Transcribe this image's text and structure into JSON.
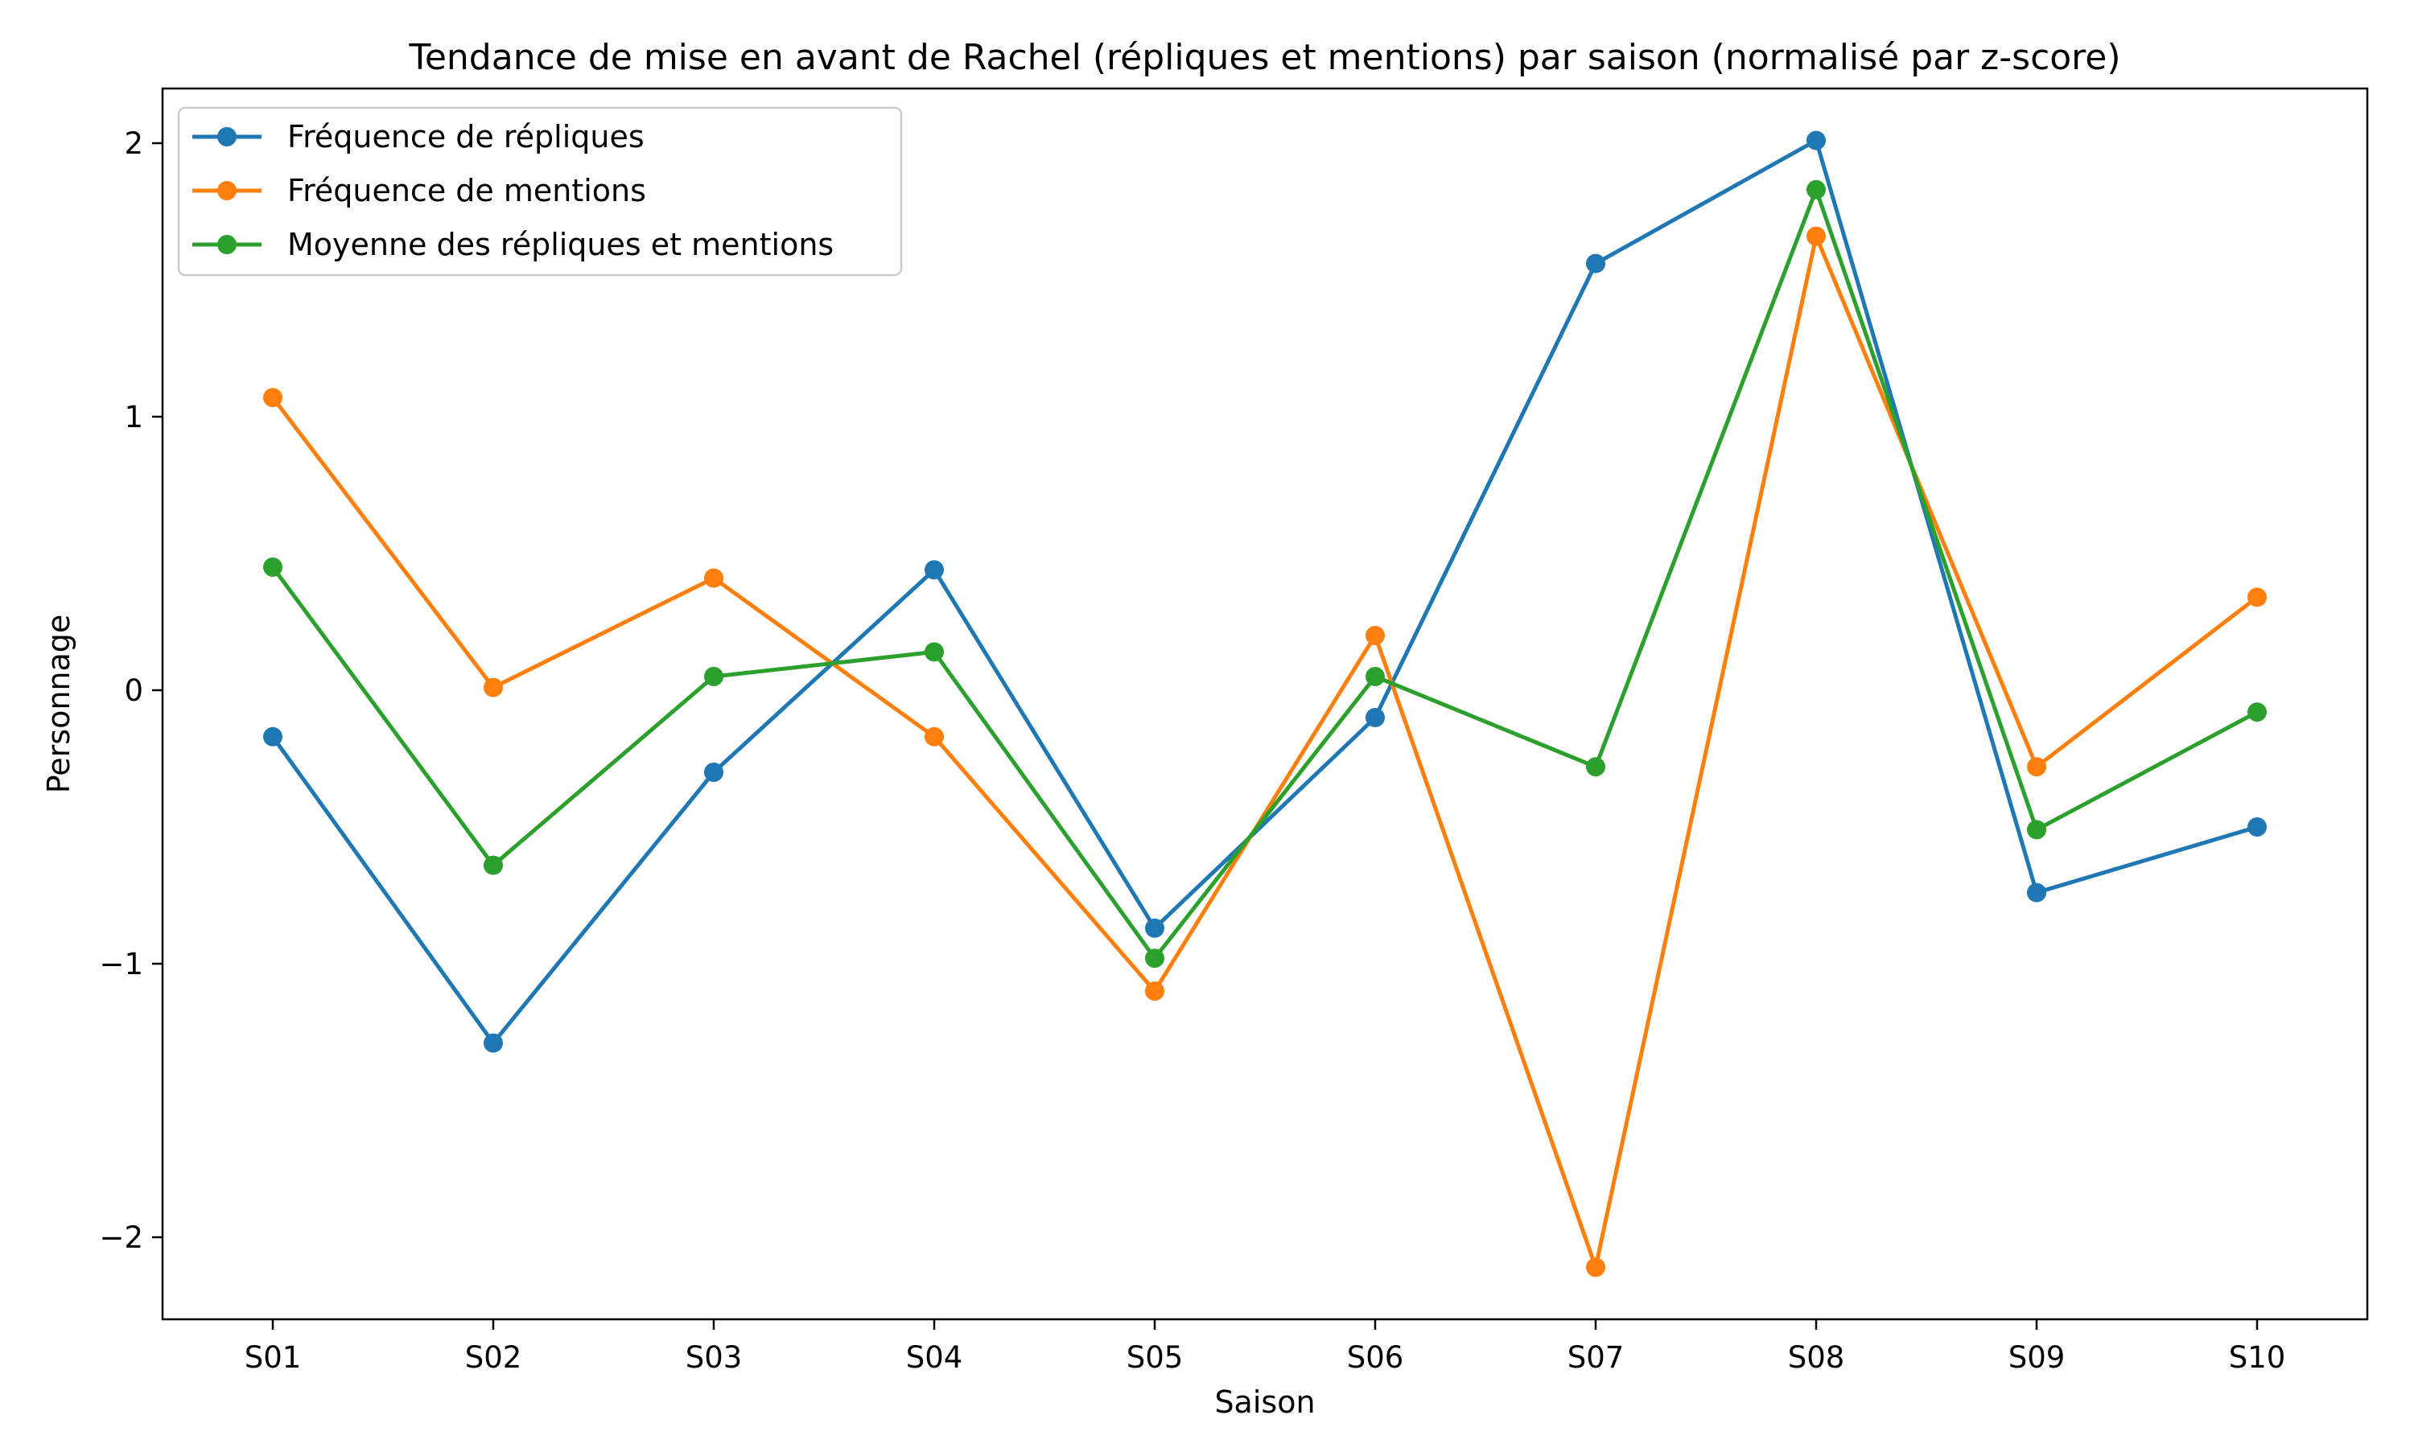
{
  "chart_data": {
    "type": "line",
    "title": "Tendance de mise en avant de Rachel (répliques et mentions) par saison (normalisé par z-score)",
    "xlabel": "Saison",
    "ylabel": "Personnage",
    "categories": [
      "S01",
      "S02",
      "S03",
      "S04",
      "S05",
      "S06",
      "S07",
      "S08",
      "S09",
      "S10"
    ],
    "ylim": [
      -2.3,
      2.2
    ],
    "yticks": [
      2,
      1,
      0,
      -1,
      -2
    ],
    "ytick_labels": [
      "2",
      "1",
      "0",
      "−1",
      "−2"
    ],
    "grid": false,
    "legend_position": "top-left",
    "series": [
      {
        "name": "Fréquence de répliques",
        "color": "#1f77b4",
        "values": [
          -0.17,
          -1.29,
          -0.3,
          0.44,
          -0.87,
          -0.1,
          1.56,
          2.01,
          -0.74,
          -0.5
        ]
      },
      {
        "name": "Fréquence de mentions",
        "color": "#ff7f0e",
        "values": [
          1.07,
          0.01,
          0.41,
          -0.17,
          -1.1,
          0.2,
          -2.11,
          1.66,
          -0.28,
          0.34
        ]
      },
      {
        "name": "Moyenne des répliques et mentions",
        "color": "#2ca02c",
        "values": [
          0.45,
          -0.64,
          0.05,
          0.14,
          -0.98,
          0.05,
          -0.28,
          1.83,
          -0.51,
          -0.08
        ]
      }
    ]
  }
}
